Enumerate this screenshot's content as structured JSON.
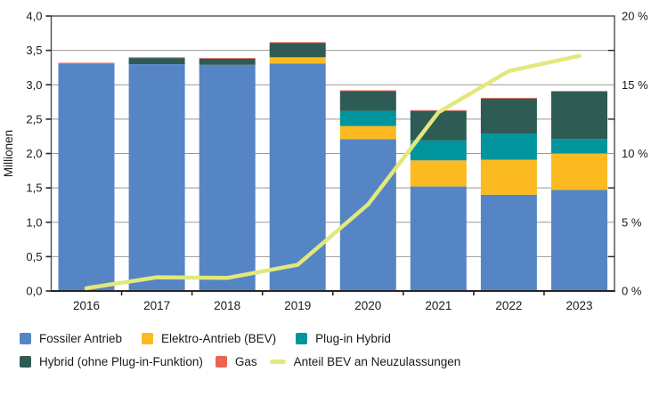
{
  "chart_data": {
    "type": "bar",
    "subtype": "stacked-bars-with-line-overlay",
    "title": "",
    "categories": [
      "2016",
      "2017",
      "2018",
      "2019",
      "2020",
      "2021",
      "2022",
      "2023"
    ],
    "series": [
      {
        "name": "Fossiler Antrieb",
        "color": "#5585C5",
        "values": [
          3.31,
          3.3,
          3.29,
          3.31,
          2.21,
          1.52,
          1.4,
          1.47
        ]
      },
      {
        "name": "Elektro-Antrieb (BEV)",
        "color": "#FBBA1F",
        "values": [
          0,
          0,
          0,
          0.09,
          0.19,
          0.38,
          0.51,
          0.53
        ]
      },
      {
        "name": "Plug-in Hybrid",
        "color": "#00949D",
        "values": [
          0,
          0,
          0,
          0,
          0.22,
          0.29,
          0.38,
          0.21
        ]
      },
      {
        "name": "Hybrid (ohne Plug-in-Funktion)",
        "color": "#2E5B54",
        "values": [
          0,
          0.09,
          0.09,
          0.21,
          0.29,
          0.43,
          0.51,
          0.69
        ]
      },
      {
        "name": "Gas",
        "color": "#EE6352",
        "values": [
          0.01,
          0.01,
          0.01,
          0.01,
          0.01,
          0.01,
          0.01,
          0.01
        ]
      }
    ],
    "line_series": {
      "name": "Anteil BEV an Neuzulassungen",
      "color": "#E2E87C",
      "axis": "right",
      "values_percent": [
        0.2,
        1.0,
        0.95,
        1.9,
        6.3,
        13.0,
        16.0,
        17.1
      ]
    },
    "left_axis": {
      "label": "Millionen",
      "min": 0,
      "max": 4,
      "step": 0.5,
      "tick_labels": [
        "0,0",
        "0,5",
        "1,0",
        "1,5",
        "2,0",
        "2,5",
        "3,0",
        "3,5",
        "4,0"
      ]
    },
    "right_axis": {
      "min": 0,
      "max": 20,
      "step": 5,
      "tick_labels": [
        "0 %",
        "5 %",
        "10 %",
        "15 %",
        "20 %"
      ],
      "minor_ticks": [
        2.5,
        7.5,
        12.5,
        17.5
      ]
    },
    "grid": true,
    "legend_position": "bottom"
  },
  "legend": {
    "rows": [
      [
        {
          "label": "Fossiler Antrieb",
          "color": "#5585C5",
          "swatch": "square"
        },
        {
          "label": "Elektro-Antrieb (BEV)",
          "color": "#FBBA1F",
          "swatch": "square"
        },
        {
          "label": "Plug-in Hybrid",
          "color": "#00949D",
          "swatch": "square"
        }
      ],
      [
        {
          "label": "Hybrid (ohne Plug-in-Funktion)",
          "color": "#2E5B54",
          "swatch": "square"
        },
        {
          "label": "Gas",
          "color": "#EE6352",
          "swatch": "square"
        },
        {
          "label": "Anteil BEV an Neuzulassungen",
          "color": "#E2E87C",
          "swatch": "line"
        }
      ]
    ]
  },
  "style_colors": {
    "grid": "#999999",
    "border": "#4d4d4d",
    "bottom_axis": "#262626",
    "text": "#1a1a1a"
  }
}
